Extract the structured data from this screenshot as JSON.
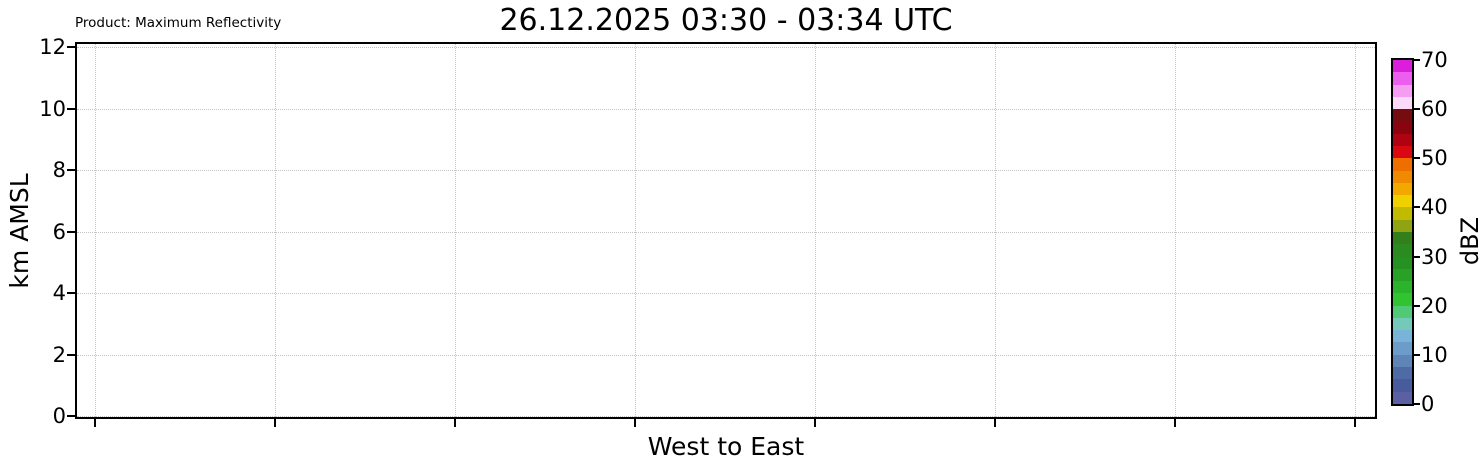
{
  "header": {
    "product_label": "Product: Maximum Reflectivity",
    "title": "26.12.2025 03:30 - 03:34 UTC"
  },
  "chart_data": {
    "type": "heatmap",
    "title": "26.12.2025 03:30 - 03:34 UTC",
    "subtitle": "Product: Maximum Reflectivity",
    "xlabel": "West to East",
    "ylabel": "km AMSL",
    "ylim": [
      0,
      12
    ],
    "yticks": [
      0,
      2,
      4,
      6,
      8,
      10,
      12
    ],
    "x_tick_count": 8,
    "x_tick_labels": [],
    "grid": true,
    "values": [],
    "colorbar": {
      "label": "dBZ",
      "min": 0,
      "max": 70,
      "step": 2.5,
      "ticks": [
        0,
        10,
        20,
        30,
        40,
        50,
        60,
        70
      ],
      "colors_top_to_bottom": [
        "#da1edb",
        "#ec5fee",
        "#f49df2",
        "#fbd9f9",
        "#740c10",
        "#8c0310",
        "#b00312",
        "#da0813",
        "#ee6f00",
        "#f08a00",
        "#f3a800",
        "#efd100",
        "#c2ba00",
        "#8fa410",
        "#32801c",
        "#2b8a20",
        "#259122",
        "#27a226",
        "#2bb32b",
        "#31c431",
        "#50ca74",
        "#74c9bb",
        "#7ab3d8",
        "#6b9cca",
        "#5e84b8",
        "#4f6ba6",
        "#475b9d",
        "#5a60a3"
      ]
    }
  }
}
